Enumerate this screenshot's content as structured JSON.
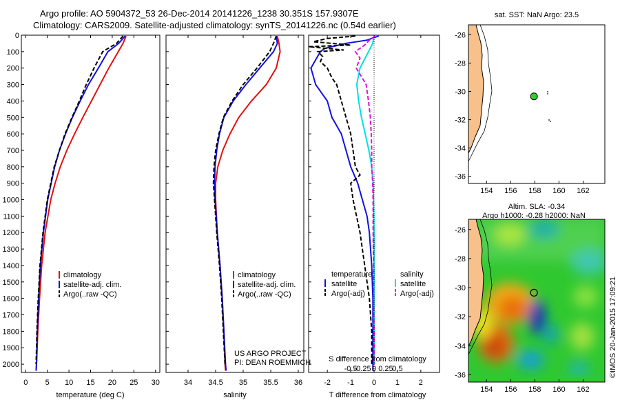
{
  "header": {
    "line1": "Argo profile: AO 5904372_53 26-Dec-2014 20141226_1238 30.351S 157.9307E",
    "line2": "Climatology: CARS2009. Satellite-adjusted climatology: synTS_20141226.nc (0.54d earlier)"
  },
  "colors": {
    "climatology": "#e01010",
    "satellite": "#1010e0",
    "argo": "#000000",
    "sal_sat": "#00e0e0",
    "sal_argo": "#e010e0",
    "land": "#f8c08a",
    "float": "#33cc33"
  },
  "chart_data": [
    {
      "type": "line",
      "panel": "temperature",
      "xlabel": "temperature (deg C)",
      "xlim": [
        -1,
        31
      ],
      "xticks": [
        0,
        5,
        10,
        15,
        20,
        25,
        30
      ],
      "ylim": [
        2050,
        0
      ],
      "yticks": [
        0,
        100,
        200,
        300,
        400,
        500,
        600,
        700,
        800,
        900,
        1000,
        1100,
        1200,
        1300,
        1400,
        1500,
        1600,
        1700,
        1800,
        1900,
        2000
      ],
      "legend": [
        "climatology",
        "satellite-adj. clim.",
        "Argo(..raw -QC)"
      ],
      "series": [
        {
          "name": "climatology",
          "depth": [
            5,
            50,
            100,
            200,
            300,
            400,
            500,
            600,
            700,
            800,
            900,
            1000,
            1200,
            1400,
            1600,
            1800,
            2000,
            2040
          ],
          "values": [
            23.2,
            22.5,
            21.4,
            19.2,
            17.2,
            15.2,
            13.2,
            11.3,
            9.5,
            8.0,
            6.8,
            5.8,
            4.5,
            3.7,
            3.2,
            2.8,
            2.5,
            2.4
          ]
        },
        {
          "name": "satellite-adj. clim.",
          "depth": [
            5,
            50,
            100,
            200,
            300,
            400,
            500,
            600,
            700,
            800,
            900,
            1000,
            1200,
            1400,
            1600,
            1800,
            2000,
            2040
          ],
          "values": [
            23.0,
            21.5,
            19.0,
            16.8,
            14.5,
            12.6,
            10.8,
            9.2,
            7.8,
            6.7,
            5.9,
            5.1,
            4.1,
            3.4,
            3.0,
            2.7,
            2.5,
            2.4
          ]
        },
        {
          "name": "Argo(..raw -QC)",
          "depth": [
            5,
            50,
            100,
            200,
            300,
            400,
            500,
            600,
            700,
            800,
            900,
            1000,
            1200,
            1400,
            1600,
            1800,
            2000
          ],
          "values": [
            22.5,
            21.0,
            17.8,
            15.8,
            14.0,
            12.4,
            10.7,
            9.1,
            7.8,
            6.6,
            5.8,
            5.0,
            4.0,
            3.3,
            2.9,
            2.6,
            2.4
          ]
        }
      ]
    },
    {
      "type": "line",
      "panel": "salinity",
      "xlabel": "salinity",
      "xlim": [
        33.6,
        36.1
      ],
      "xticks": [
        34,
        34.5,
        35,
        35.5,
        36
      ],
      "ylim": [
        2050,
        0
      ],
      "legend": [
        "climatology",
        "satellite-adj. clim.",
        "Argo(..raw -QC)"
      ],
      "annotation": [
        "US ARGO PROJECT",
        "PI: DEAN ROEMMICH"
      ],
      "series": [
        {
          "name": "climatology",
          "depth": [
            5,
            50,
            100,
            200,
            300,
            400,
            500,
            600,
            700,
            800,
            900,
            1000,
            1200,
            1400,
            1600,
            1800,
            2000,
            2040
          ],
          "values": [
            35.62,
            35.65,
            35.67,
            35.6,
            35.42,
            35.15,
            34.92,
            34.76,
            34.63,
            34.54,
            34.5,
            34.5,
            34.53,
            34.58,
            34.62,
            34.65,
            34.67,
            34.68
          ]
        },
        {
          "name": "satellite-adj. clim.",
          "depth": [
            5,
            50,
            100,
            200,
            300,
            400,
            500,
            600,
            700,
            800,
            900,
            1000,
            1200,
            1400,
            1600,
            1800,
            2000,
            2040
          ],
          "values": [
            35.6,
            35.62,
            35.55,
            35.3,
            35.05,
            34.82,
            34.65,
            34.57,
            34.52,
            34.49,
            34.48,
            34.49,
            34.53,
            34.58,
            34.62,
            34.65,
            34.68,
            34.69
          ]
        },
        {
          "name": "Argo(..raw -QC)",
          "depth": [
            5,
            50,
            100,
            200,
            300,
            400,
            500,
            600,
            700,
            800,
            900,
            1000,
            1200,
            1400,
            1600,
            1800,
            2000
          ],
          "values": [
            35.6,
            35.55,
            35.48,
            35.25,
            35.0,
            34.8,
            34.64,
            34.56,
            34.5,
            34.47,
            34.46,
            34.48,
            34.52,
            34.57,
            34.61,
            34.64,
            34.67
          ]
        }
      ]
    },
    {
      "type": "line",
      "panel": "difference",
      "xlabel": "T difference from climatology",
      "xlabel_top": "S difference from climatology",
      "xlim": [
        -2.8,
        2.8
      ],
      "xticks": [
        -2,
        -1,
        0,
        1,
        2
      ],
      "xtick_labels": [
        "-2",
        "-1",
        "0",
        "1",
        "2"
      ],
      "sticks": [
        -0.5,
        -0.25,
        0,
        0.25,
        0.5
      ],
      "stick_labels": [
        "-0.5",
        "-0.25",
        "0",
        "0.25",
        "0.5"
      ],
      "ylim": [
        2050,
        0
      ],
      "legend_temperature": {
        "title": "temperature",
        "items": [
          "satellite",
          "Argo(-adj)"
        ]
      },
      "legend_salinity": {
        "title": "salinity",
        "items": [
          "satellite",
          "Argo(-adj)"
        ]
      },
      "series": [
        {
          "name": "satellite",
          "var": "T",
          "depth": [
            5,
            30,
            50,
            80,
            100,
            150,
            200,
            250,
            300,
            400,
            500,
            600,
            700,
            800,
            900,
            1000,
            1100,
            1200,
            1300,
            1400,
            1600,
            1800,
            2000,
            2040
          ],
          "values": [
            0.2,
            -0.3,
            -1.2,
            -2.1,
            -2.3,
            -2.5,
            -2.7,
            -2.6,
            -2.5,
            -2.0,
            -1.8,
            -1.4,
            -1.2,
            -1.0,
            -0.7,
            -0.5,
            -0.3,
            -0.2,
            -0.15,
            -0.1,
            -0.05,
            -0.05,
            -0.05,
            -0.05
          ]
        },
        {
          "name": "Argo(-adj)",
          "var": "T",
          "depth": [
            5,
            20,
            40,
            60,
            70,
            90,
            100,
            130,
            160,
            200,
            260,
            300,
            400,
            500,
            600,
            700,
            800,
            850,
            900,
            1000,
            1200,
            1400,
            1600,
            1800,
            2000
          ],
          "values": [
            -0.8,
            -2.0,
            -2.6,
            -1.0,
            -2.8,
            -1.3,
            -2.4,
            -2.2,
            -2.3,
            -2.0,
            -1.8,
            -1.6,
            -1.4,
            -1.2,
            -1.0,
            -0.9,
            -0.8,
            -0.6,
            -1.0,
            -0.9,
            -0.6,
            -0.4,
            -0.2,
            -0.1,
            -0.1
          ]
        },
        {
          "name": "satellite",
          "var": "S",
          "depth": [
            5,
            50,
            100,
            200,
            300,
            400,
            500,
            600,
            700,
            800,
            900,
            1000,
            1200,
            1400,
            1600,
            1800,
            2000
          ],
          "values": [
            0.0,
            -0.03,
            -0.12,
            -0.3,
            -0.37,
            -0.33,
            -0.27,
            -0.19,
            -0.11,
            -0.05,
            -0.02,
            -0.01,
            0.0,
            0.0,
            0.0,
            0.0,
            0.0
          ]
        },
        {
          "name": "Argo(-adj)",
          "var": "S",
          "depth": [
            5,
            30,
            60,
            100,
            140,
            200,
            300,
            400,
            500,
            600,
            700,
            800,
            900,
            1000,
            1200,
            1400,
            1600,
            1800,
            2000
          ],
          "values": [
            0.02,
            -0.1,
            -0.2,
            -0.4,
            -0.3,
            -0.38,
            -0.17,
            -0.12,
            -0.08,
            -0.06,
            -0.05,
            -0.05,
            -0.03,
            -0.02,
            -0.02,
            -0.01,
            -0.01,
            0.0,
            0.0
          ]
        }
      ]
    },
    {
      "type": "scatter",
      "panel": "sst-map",
      "title": "sat. SST: NaN Argo: 23.5",
      "xlim": [
        152.5,
        163.8
      ],
      "ylim": [
        -36.5,
        -25.3
      ],
      "xticks": [
        154,
        156,
        158,
        160,
        162
      ],
      "yticks": [
        -26,
        -28,
        -30,
        -32,
        -34,
        -36
      ],
      "float_position": {
        "lon": 157.93,
        "lat": -30.35
      }
    },
    {
      "type": "heatmap",
      "panel": "sla-map",
      "title": "Altim. SLA: -0.34",
      "subtitle": "Argo h1000: -0.28 h2000: NaN",
      "xlim": [
        152.5,
        163.8
      ],
      "ylim": [
        -36.5,
        -25.3
      ],
      "xticks": [
        154,
        156,
        158,
        160,
        162
      ],
      "yticks": [
        -26,
        -28,
        -30,
        -32,
        -34,
        -36
      ],
      "float_position": {
        "lon": 157.93,
        "lat": -30.35
      }
    }
  ],
  "credit": "©IMOS 20-Jan-2015 17:09:21"
}
